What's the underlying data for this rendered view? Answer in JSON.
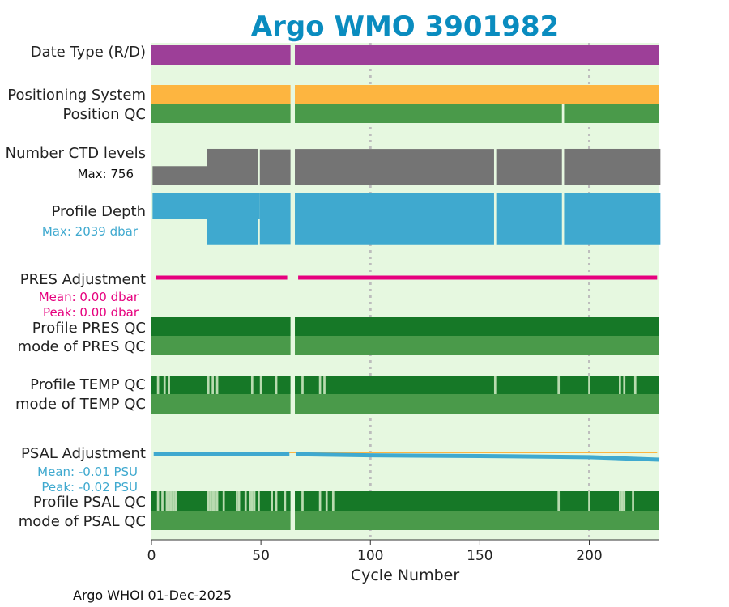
{
  "chart_data": {
    "type": "bar",
    "title": "Argo WMO 3901982",
    "xlabel": "Cycle Number",
    "xlim": [
      0,
      232
    ],
    "xticks": [
      0,
      50,
      100,
      150,
      200
    ],
    "grid_x": [
      100,
      200
    ],
    "gap_cycles": [
      64,
      65
    ],
    "footer": "Argo WHOI 01-Dec-2025",
    "rows": {
      "date_type": {
        "label": "Date Type (R/D)",
        "color": "#9d3f98"
      },
      "positioning_system": {
        "label": "Positioning System",
        "color": "#fdb540"
      },
      "position_qc": {
        "label": "Position QC",
        "color": "#4a9a4a",
        "gap_cycles": [
          188
        ]
      },
      "ctd_levels": {
        "label": "Number CTD levels",
        "max_label": "Max: 756",
        "max": 756,
        "color": "#747474",
        "segments": [
          {
            "from": 1,
            "to": 25,
            "value": 390
          },
          {
            "from": 26,
            "to": 48,
            "value": 740
          },
          {
            "from": 49,
            "to": 49,
            "value": 0
          },
          {
            "from": 50,
            "to": 63,
            "value": 730
          },
          {
            "from": 66,
            "to": 156,
            "value": 738
          },
          {
            "from": 157,
            "to": 157,
            "value": 0
          },
          {
            "from": 158,
            "to": 187,
            "value": 738
          },
          {
            "from": 188,
            "to": 188,
            "value": 0
          },
          {
            "from": 189,
            "to": 232,
            "value": 740
          }
        ]
      },
      "profile_depth": {
        "label": "Profile Depth",
        "max_label": "Max: 2039 dbar",
        "max": 2039,
        "color": "#3fa9cf",
        "segments": [
          {
            "from": 1,
            "to": 25,
            "value": 1000
          },
          {
            "from": 26,
            "to": 48,
            "value": 2000
          },
          {
            "from": 49,
            "to": 49,
            "value": 1000
          },
          {
            "from": 50,
            "to": 63,
            "value": 1990
          },
          {
            "from": 66,
            "to": 156,
            "value": 2000
          },
          {
            "from": 157,
            "to": 157,
            "value": 0
          },
          {
            "from": 158,
            "to": 187,
            "value": 2000
          },
          {
            "from": 188,
            "to": 188,
            "value": 0
          },
          {
            "from": 189,
            "to": 232,
            "value": 2000
          }
        ]
      },
      "pres_adjustment": {
        "label": "PRES Adjustment",
        "mean_label": "Mean: 0.00 dbar",
        "peak_label": "Peak: 0.00 dbar",
        "color": "#e6007e",
        "values_dbar": [
          0.0,
          0.0
        ]
      },
      "profile_pres_qc": {
        "label": "Profile PRES QC",
        "color": "#167827"
      },
      "mode_pres_qc": {
        "label": "mode of PRES QC",
        "color": "#4a9a4a"
      },
      "profile_temp_qc": {
        "label": "Profile TEMP QC",
        "color": "#167827",
        "flag_color": "#b9dbb0",
        "flag_cycles": [
          3,
          6,
          8,
          26,
          28,
          30,
          46,
          50,
          57,
          69,
          77,
          79,
          157,
          186,
          200,
          214,
          216,
          221
        ]
      },
      "mode_temp_qc": {
        "label": "mode of TEMP QC",
        "color": "#4a9a4a"
      },
      "psal_adjustment": {
        "label": "PSAL Adjustment",
        "mean_label": "Mean: -0.01 PSU",
        "peak_label": "Peak: -0.02 PSU",
        "color": "#3fa9cf",
        "zero_color": "#fdb540",
        "curve": [
          [
            1,
            -0.005
          ],
          [
            63,
            -0.005
          ],
          [
            66,
            -0.005
          ],
          [
            100,
            -0.008
          ],
          [
            150,
            -0.01
          ],
          [
            200,
            -0.013
          ],
          [
            232,
            -0.02
          ]
        ]
      },
      "profile_psal_qc": {
        "label": "Profile PSAL QC",
        "color": "#167827",
        "flag_color": "#b9dbb0",
        "flag_cycles": [
          3,
          5,
          7,
          8,
          9,
          10,
          11,
          26,
          27,
          28,
          29,
          30,
          33,
          39,
          40,
          43,
          45,
          46,
          47,
          49,
          55,
          57,
          61,
          69,
          77,
          80,
          83,
          186,
          200,
          214,
          215,
          216,
          220
        ]
      },
      "mode_psal_qc": {
        "label": "mode of PSAL QC",
        "color": "#4a9a4a"
      }
    },
    "colors": {
      "title": "#0a8cbf",
      "panel_bg": "#e6f8e0",
      "grid": "#bdbdbd"
    }
  }
}
